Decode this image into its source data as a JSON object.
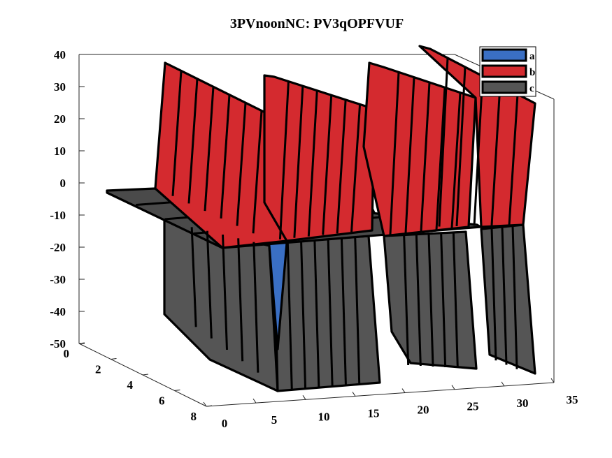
{
  "chart_data": {
    "type": "surface3d",
    "title": "3PVnoonNC: PV3qOPFVUF",
    "xlabel": "",
    "ylabel": "",
    "zlabel": "",
    "xlim": [
      0,
      35
    ],
    "ylim": [
      0,
      8
    ],
    "zlim": [
      -50,
      40
    ],
    "x_ticks": [
      "0",
      "5",
      "10",
      "15",
      "20",
      "25",
      "30",
      "35"
    ],
    "y_ticks": [
      "0",
      "2",
      "4",
      "6",
      "8"
    ],
    "z_ticks": [
      "40",
      "30",
      "20",
      "10",
      "0",
      "-10",
      "-20",
      "-30",
      "-40",
      "-50"
    ],
    "legend_position": "top-right",
    "colors": {
      "a": "#3a6fc4",
      "b": "#d42a2f",
      "c": "#555555"
    },
    "series": [
      {
        "name": "a",
        "x": [
          0,
          1,
          2,
          3,
          4,
          5,
          6,
          7,
          8,
          9,
          10,
          11,
          12,
          13,
          14,
          15,
          16,
          17,
          18,
          19,
          20,
          21,
          22,
          23,
          24,
          25,
          26,
          27,
          28,
          29,
          30,
          31
        ],
        "values": [
          0,
          0,
          0,
          0,
          0,
          0,
          0,
          0,
          -40,
          0,
          0,
          0,
          0,
          0,
          0,
          0,
          5,
          0,
          0,
          0,
          0,
          0,
          0,
          0,
          0,
          0,
          0,
          0,
          0,
          0,
          0,
          10
        ]
      },
      {
        "name": "b",
        "x": [
          0,
          1,
          2,
          3,
          4,
          5,
          6,
          7,
          8,
          9,
          10,
          11,
          12,
          13,
          14,
          15,
          16,
          17,
          18,
          19,
          20,
          21,
          22,
          23,
          24,
          25,
          26,
          27,
          28,
          29,
          30,
          31
        ],
        "values": [
          0,
          38,
          38,
          38,
          38,
          38,
          38,
          38,
          38,
          38,
          38,
          38,
          38,
          38,
          38,
          38,
          38,
          38,
          38,
          38,
          38,
          38,
          38,
          38,
          38,
          38,
          38,
          38,
          38,
          38,
          38,
          38
        ]
      },
      {
        "name": "c",
        "x": [
          0,
          1,
          2,
          3,
          4,
          5,
          6,
          7,
          8,
          9,
          10,
          11,
          12,
          13,
          14,
          15,
          16,
          17,
          18,
          19,
          20,
          21,
          22,
          23,
          24,
          25,
          26,
          27,
          28,
          29,
          30,
          31
        ],
        "values": [
          0,
          -40,
          -40,
          -40,
          -40,
          -40,
          -40,
          -40,
          -40,
          -40,
          -40,
          -40,
          -40,
          -40,
          -40,
          -40,
          -40,
          -40,
          -40,
          -40,
          -40,
          -40,
          -40,
          -40,
          -40,
          -40,
          -40,
          -40,
          -40,
          -40,
          -40,
          -40
        ]
      }
    ]
  }
}
